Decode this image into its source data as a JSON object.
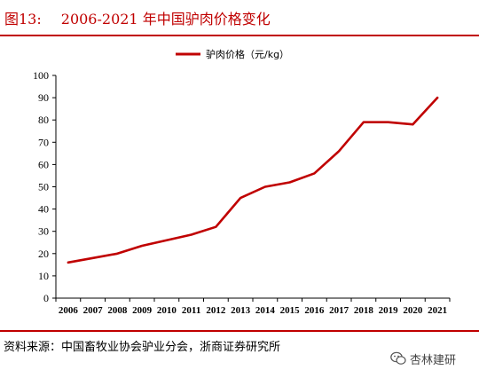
{
  "header": {
    "figure_label": "图13:",
    "title": "2006-2021 年中国驴肉价格变化"
  },
  "source_note": "资料来源：中国畜牧业协会驴业分会，浙商证券研究所",
  "watermark": {
    "text": "杏林建研",
    "icon": "wechat-icon"
  },
  "colors": {
    "accent": "#c00000",
    "series": "#c00000"
  },
  "chart_data": {
    "type": "line",
    "x": [
      2006,
      2007,
      2008,
      2009,
      2010,
      2011,
      2012,
      2013,
      2014,
      2015,
      2016,
      2017,
      2018,
      2019,
      2020,
      2021
    ],
    "series": [
      {
        "name": "驴肉价格（元/kg）",
        "values": [
          16,
          18,
          20,
          23.5,
          26,
          28.5,
          32,
          45,
          50,
          52,
          56,
          66,
          79,
          79,
          78,
          90
        ]
      }
    ],
    "xlabel": "",
    "ylabel": "",
    "ylim": [
      0,
      100
    ],
    "yticks": [
      0,
      10,
      20,
      30,
      40,
      50,
      60,
      70,
      80,
      90,
      100
    ],
    "xtick_labels": [
      "2006",
      "2007",
      "2008",
      "2009",
      "2010",
      "2011",
      "2012",
      "2013",
      "2014",
      "2015",
      "2016",
      "2017",
      "2018",
      "2019",
      "2020",
      "2021"
    ],
    "grid": false,
    "legend_position": "top-center"
  }
}
